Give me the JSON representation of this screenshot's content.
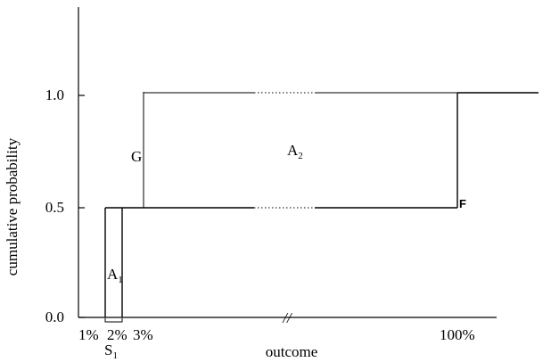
{
  "diagram": {
    "ylabel": "cumulative probability",
    "xlabel": "outcome",
    "y_ticks": [
      "0.0",
      "0.5",
      "1.0"
    ],
    "x_tick_labels": [
      "1%",
      "2%",
      "3%",
      "100%"
    ],
    "labels": {
      "g": "G",
      "f": "F",
      "a2_main": "A",
      "a2_sub": "2",
      "a1_main": "A",
      "a1_sub": "1",
      "s1_main": "S",
      "s1_sub": "1"
    },
    "axis_break": "//"
  }
}
